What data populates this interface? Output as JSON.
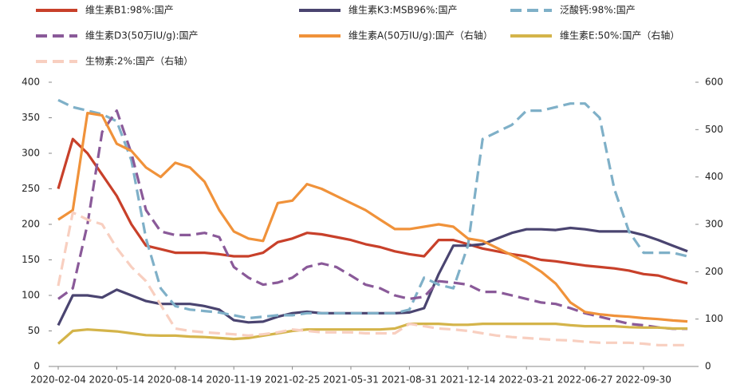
{
  "chart_data": {
    "type": "line",
    "categories": [
      "2020-02-04",
      null,
      null,
      null,
      "2020-05-14",
      null,
      null,
      null,
      "2020-08-14",
      null,
      null,
      null,
      "2020-11-19",
      null,
      null,
      null,
      "2021-02-25",
      null,
      null,
      null,
      "2021-05-31",
      null,
      null,
      null,
      "2021-08-31",
      null,
      null,
      null,
      "2021-12-14",
      null,
      null,
      null,
      "2022-03-21",
      null,
      null,
      null,
      "2022-06-27",
      null,
      null,
      null,
      "2022-09-30",
      null,
      null,
      null
    ],
    "ylim": [
      0,
      400
    ],
    "yticks": [
      0,
      50,
      100,
      150,
      200,
      250,
      300,
      350,
      400
    ],
    "y2lim": [
      0,
      600
    ],
    "y2ticks": [
      0,
      100,
      200,
      300,
      400,
      500,
      600
    ],
    "series": [
      {
        "name": "维生素B1:98%:国产",
        "color": "#c8402a",
        "style": "solid",
        "values": [
          250,
          320,
          300,
          270,
          240,
          200,
          170,
          165,
          160,
          160,
          160,
          158,
          155,
          155,
          160,
          175,
          180,
          188,
          186,
          182,
          178,
          172,
          168,
          162,
          158,
          155,
          178,
          178,
          172,
          166,
          162,
          158,
          155,
          150,
          148,
          145,
          142,
          140,
          138,
          135,
          130,
          128,
          122,
          117
        ]
      },
      {
        "name": "维生素K3:MSB96%:国产",
        "color": "#4a4470",
        "style": "solid",
        "values": [
          58,
          100,
          100,
          97,
          108,
          100,
          92,
          88,
          88,
          88,
          85,
          80,
          65,
          62,
          63,
          70,
          75,
          77,
          75,
          75,
          75,
          75,
          75,
          75,
          76,
          82,
          130,
          170,
          170,
          172,
          180,
          188,
          193,
          193,
          192,
          195,
          193,
          190,
          190,
          190,
          185,
          178,
          170,
          162
        ]
      },
      {
        "name": "泛酸钙:98%:国产",
        "color": "#7fb0c8",
        "style": "dashed",
        "values": [
          375,
          365,
          360,
          355,
          345,
          290,
          180,
          110,
          85,
          80,
          78,
          76,
          72,
          68,
          70,
          72,
          72,
          75,
          75,
          75,
          75,
          75,
          75,
          75,
          80,
          125,
          115,
          110,
          170,
          320,
          330,
          340,
          360,
          360,
          365,
          370,
          370,
          350,
          250,
          190,
          160,
          160,
          160,
          155
        ]
      },
      {
        "name": "维生素D3(50万IU/g):国产",
        "color": "#8a5a99",
        "style": "dashed",
        "values": [
          95,
          110,
          200,
          330,
          360,
          300,
          220,
          190,
          185,
          185,
          188,
          182,
          140,
          125,
          115,
          118,
          125,
          140,
          145,
          140,
          128,
          115,
          110,
          100,
          95,
          98,
          120,
          118,
          115,
          105,
          105,
          100,
          95,
          90,
          88,
          82,
          75,
          70,
          65,
          60,
          58,
          55,
          53,
          53
        ]
      },
      {
        "name": "维生素A(50万IU/g):国产（右轴）",
        "color": "#f0923a",
        "style": "solid",
        "axis": "y2",
        "values": [
          310,
          330,
          535,
          530,
          470,
          455,
          420,
          400,
          430,
          420,
          390,
          330,
          285,
          270,
          265,
          345,
          350,
          385,
          375,
          360,
          345,
          330,
          310,
          290,
          290,
          295,
          300,
          295,
          270,
          265,
          250,
          235,
          220,
          200,
          175,
          135,
          115,
          110,
          107,
          105,
          102,
          100,
          97,
          95
        ]
      },
      {
        "name": "维生素E:50%:国产（右轴）",
        "color": "#d4b44a",
        "style": "solid",
        "axis": "y2",
        "values": [
          48,
          75,
          78,
          76,
          74,
          70,
          66,
          65,
          65,
          63,
          62,
          60,
          58,
          60,
          65,
          70,
          75,
          78,
          78,
          78,
          78,
          78,
          78,
          80,
          90,
          90,
          90,
          88,
          88,
          90,
          90,
          90,
          90,
          90,
          90,
          87,
          85,
          85,
          85,
          83,
          82,
          82,
          80,
          80
        ]
      },
      {
        "name": "生物素:2%:国产（右轴）",
        "color": "#f8cfc0",
        "style": "dashed",
        "axis": "y2",
        "values": [
          170,
          325,
          310,
          300,
          250,
          210,
          180,
          130,
          80,
          75,
          72,
          70,
          68,
          65,
          68,
          72,
          78,
          75,
          72,
          72,
          72,
          70,
          70,
          70,
          90,
          85,
          80,
          78,
          75,
          70,
          65,
          62,
          60,
          58,
          56,
          55,
          52,
          50,
          50,
          50,
          48,
          45,
          45,
          45
        ]
      }
    ]
  }
}
